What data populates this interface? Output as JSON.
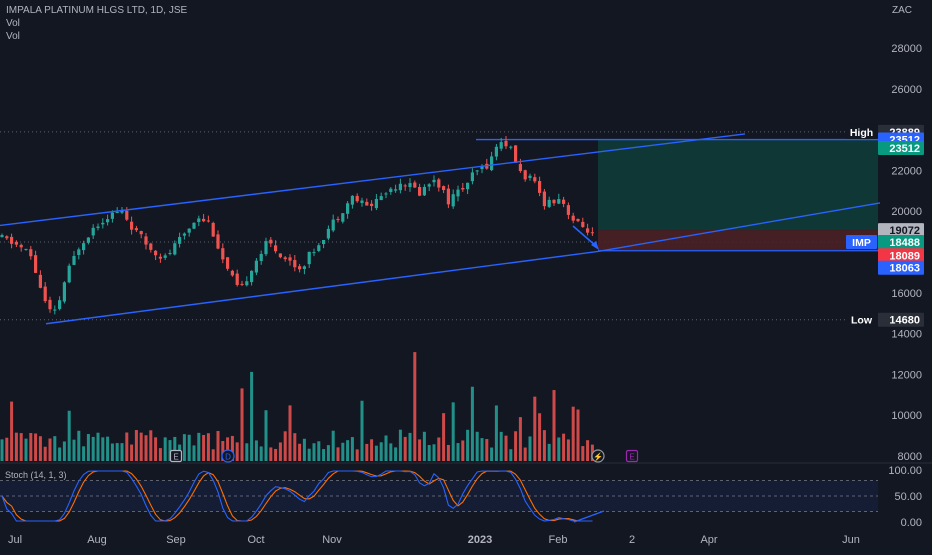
{
  "header": {
    "title": "IMPALA PLATINUM HLGS LTD, 1D, JSE",
    "line2": "Vol",
    "line3": "Vol"
  },
  "currency": "ZAC",
  "colors": {
    "background": "#131722",
    "up": "#26a69a",
    "down": "#ef5350",
    "channel": "#2962ff",
    "stoch_k": "#2962ff",
    "stoch_d": "#ff6d00",
    "target_zone": "#0f3d3a",
    "stop_zone": "#4a2025"
  },
  "chart_data": {
    "type": "candlestick",
    "x_labels": [
      "Jul",
      "Aug",
      "Sep",
      "Oct",
      "Nov",
      "2023",
      "Feb",
      "2",
      "Apr",
      "Jun"
    ],
    "y_ticks": [
      8000,
      10000,
      12000,
      14000,
      16000,
      18000,
      20000,
      22000,
      24000,
      26000,
      28000
    ],
    "price_range": [
      7700,
      29200
    ],
    "markers": [
      {
        "date": "Aug 22 2022",
        "letter": "E",
        "color": "#b2b5be"
      },
      {
        "date": "Aug 31 2022",
        "letter": "D",
        "color": "#2962ff"
      },
      {
        "date": "Feb 27 2023",
        "letter": "⚡",
        "color": "#9598a1"
      },
      {
        "date": "Mar 06 2023",
        "letter": "E",
        "color": "#9c27b0"
      }
    ],
    "price_labels": [
      {
        "label": "High",
        "value": "23889",
        "price": 23889,
        "bg": "#2a2e39",
        "tag_bg": "#131722"
      },
      {
        "value": "23512",
        "price": 23512,
        "bg": "#2962ff"
      },
      {
        "value": "23512",
        "price": 23100,
        "bg": "#089981"
      },
      {
        "value": "19072",
        "price": 19072,
        "bg": "#b2b5be",
        "fg": "#131722"
      },
      {
        "label": "IMP",
        "value": "18488",
        "price": 18488,
        "bg": "#089981",
        "tag_bg": "#2962ff"
      },
      {
        "value": "18089",
        "price": 17840,
        "bg": "#f23645"
      },
      {
        "value": "18063",
        "price": 17230,
        "bg": "#2962ff"
      },
      {
        "label": "Low",
        "value": "14680",
        "price": 14680,
        "bg": "#2a2e39",
        "tag_bg": "#131722"
      }
    ],
    "high_dotted": 23889,
    "low_dotted": 14680,
    "last_dotted": 18488,
    "channel": {
      "upper": [
        [
          0,
          19300
        ],
        [
          745,
          23789
        ]
      ],
      "lower": [
        [
          46,
          14483
        ],
        [
          598,
          18027
        ]
      ],
      "inner": [
        [
          598,
          18027
        ],
        [
          880,
          20406
        ]
      ]
    },
    "position_tool": {
      "entry": 19072,
      "target": 23512,
      "stop": 18063
    },
    "stochastic": {
      "label": "Stoch (14, 1, 3)",
      "levels": [
        0,
        20,
        50,
        80,
        100
      ],
      "tick_labels": [
        "100.00",
        "50.00",
        "0.00"
      ],
      "upper_band": 80,
      "lower_band": 20
    }
  }
}
